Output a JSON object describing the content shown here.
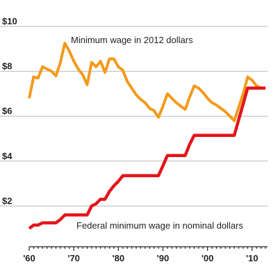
{
  "chart_data": {
    "type": "line",
    "title": "",
    "xlabel": "",
    "ylabel": "",
    "xlim": [
      1960,
      2013
    ],
    "ylim": [
      0,
      10
    ],
    "y_ticks": [
      {
        "value": 2,
        "label": "$2"
      },
      {
        "value": 4,
        "label": "$4"
      },
      {
        "value": 6,
        "label": "$6"
      },
      {
        "value": 8,
        "label": "$8"
      },
      {
        "value": 10,
        "label": "$10"
      }
    ],
    "x_ticks": [
      {
        "value": 1960,
        "label": "'60"
      },
      {
        "value": 1970,
        "label": "'70"
      },
      {
        "value": 1980,
        "label": "'80"
      },
      {
        "value": 1990,
        "label": "'90"
      },
      {
        "value": 2000,
        "label": "'00"
      },
      {
        "value": 2010,
        "label": "'10"
      }
    ],
    "grid": true,
    "series": [
      {
        "name": "Minimum wage in 2012 dollars",
        "color": "#f39a1c",
        "step": false,
        "points": [
          [
            1960,
            6.8
          ],
          [
            1961,
            7.75
          ],
          [
            1962,
            7.7
          ],
          [
            1963,
            8.2
          ],
          [
            1964,
            8.1
          ],
          [
            1965,
            8.0
          ],
          [
            1966,
            7.8
          ],
          [
            1967,
            8.4
          ],
          [
            1968,
            9.25
          ],
          [
            1969,
            8.9
          ],
          [
            1970,
            8.45
          ],
          [
            1971,
            8.1
          ],
          [
            1972,
            7.85
          ],
          [
            1973,
            7.4
          ],
          [
            1974,
            8.4
          ],
          [
            1975,
            8.2
          ],
          [
            1976,
            8.45
          ],
          [
            1977,
            7.95
          ],
          [
            1978,
            8.55
          ],
          [
            1979,
            8.55
          ],
          [
            1980,
            8.2
          ],
          [
            1981,
            8.05
          ],
          [
            1982,
            7.55
          ],
          [
            1983,
            7.25
          ],
          [
            1984,
            6.95
          ],
          [
            1985,
            6.75
          ],
          [
            1986,
            6.6
          ],
          [
            1987,
            6.35
          ],
          [
            1988,
            6.25
          ],
          [
            1989,
            5.95
          ],
          [
            1990,
            6.45
          ],
          [
            1991,
            7.0
          ],
          [
            1992,
            6.8
          ],
          [
            1993,
            6.6
          ],
          [
            1994,
            6.45
          ],
          [
            1995,
            6.3
          ],
          [
            1996,
            6.85
          ],
          [
            1997,
            7.35
          ],
          [
            1998,
            7.25
          ],
          [
            1999,
            7.05
          ],
          [
            2000,
            6.8
          ],
          [
            2001,
            6.6
          ],
          [
            2002,
            6.5
          ],
          [
            2003,
            6.35
          ],
          [
            2004,
            6.2
          ],
          [
            2005,
            6.0
          ],
          [
            2006,
            5.8
          ],
          [
            2007,
            6.4
          ],
          [
            2008,
            7.0
          ],
          [
            2009,
            7.75
          ],
          [
            2010,
            7.6
          ],
          [
            2011,
            7.35
          ],
          [
            2012,
            7.25
          ]
        ]
      },
      {
        "name": "Federal minimum wage in nominal dollars",
        "color": "#e3151a",
        "step": true,
        "points": [
          [
            1960,
            1.0
          ],
          [
            1961,
            1.15
          ],
          [
            1962,
            1.15
          ],
          [
            1963,
            1.25
          ],
          [
            1964,
            1.25
          ],
          [
            1965,
            1.25
          ],
          [
            1966,
            1.25
          ],
          [
            1967,
            1.4
          ],
          [
            1968,
            1.6
          ],
          [
            1969,
            1.6
          ],
          [
            1970,
            1.6
          ],
          [
            1971,
            1.6
          ],
          [
            1972,
            1.6
          ],
          [
            1973,
            1.6
          ],
          [
            1974,
            2.0
          ],
          [
            1975,
            2.1
          ],
          [
            1976,
            2.3
          ],
          [
            1977,
            2.3
          ],
          [
            1978,
            2.65
          ],
          [
            1979,
            2.9
          ],
          [
            1980,
            3.1
          ],
          [
            1981,
            3.35
          ],
          [
            1982,
            3.35
          ],
          [
            1983,
            3.35
          ],
          [
            1984,
            3.35
          ],
          [
            1985,
            3.35
          ],
          [
            1986,
            3.35
          ],
          [
            1987,
            3.35
          ],
          [
            1988,
            3.35
          ],
          [
            1989,
            3.35
          ],
          [
            1990,
            3.8
          ],
          [
            1991,
            4.25
          ],
          [
            1992,
            4.25
          ],
          [
            1993,
            4.25
          ],
          [
            1994,
            4.25
          ],
          [
            1995,
            4.25
          ],
          [
            1996,
            4.75
          ],
          [
            1997,
            5.15
          ],
          [
            1998,
            5.15
          ],
          [
            1999,
            5.15
          ],
          [
            2000,
            5.15
          ],
          [
            2001,
            5.15
          ],
          [
            2002,
            5.15
          ],
          [
            2003,
            5.15
          ],
          [
            2004,
            5.15
          ],
          [
            2005,
            5.15
          ],
          [
            2006,
            5.15
          ],
          [
            2007,
            5.85
          ],
          [
            2008,
            6.55
          ],
          [
            2009,
            7.25
          ],
          [
            2010,
            7.25
          ],
          [
            2011,
            7.25
          ],
          [
            2012,
            7.25
          ],
          [
            2013,
            7.25
          ]
        ]
      }
    ]
  }
}
